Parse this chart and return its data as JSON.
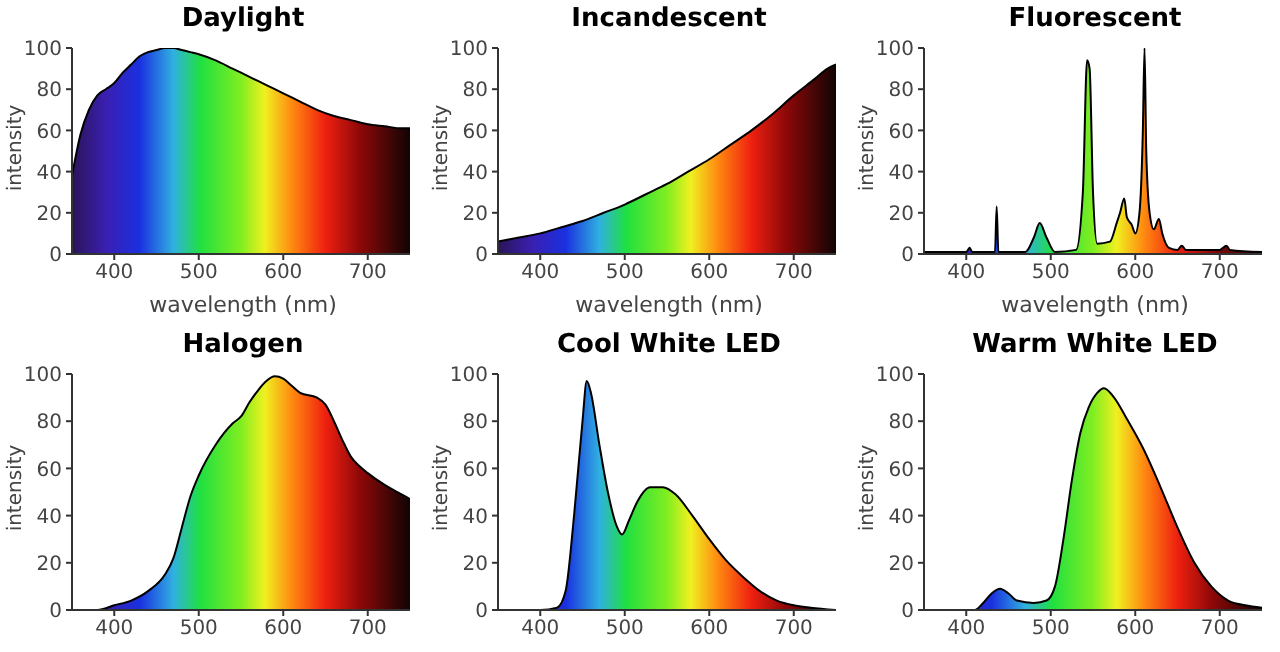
{
  "chart_data": [
    {
      "type": "area",
      "title": "Daylight",
      "xlabel": "wavelength (nm)",
      "ylabel": "intensity",
      "xlim": [
        350,
        750
      ],
      "xticks": [
        400,
        500,
        600,
        700
      ],
      "ylim": [
        0,
        100
      ],
      "yticks": [
        0,
        20,
        40,
        60,
        80,
        100
      ],
      "series": [
        {
          "color": "#000000",
          "x": [
            350,
            360,
            370,
            380,
            390,
            400,
            410,
            420,
            430,
            440,
            450,
            460,
            470,
            480,
            490,
            500,
            520,
            540,
            560,
            580,
            600,
            620,
            640,
            660,
            680,
            700,
            720,
            740,
            750
          ],
          "values": [
            38,
            58,
            70,
            77,
            80,
            83,
            88,
            92,
            96,
            98,
            99,
            100,
            100,
            99,
            98,
            97,
            94,
            90,
            86,
            82,
            78,
            74,
            70,
            67,
            65,
            63,
            62,
            61,
            61
          ]
        }
      ]
    },
    {
      "type": "area",
      "title": "Incandescent",
      "xlabel": "wavelength (nm)",
      "ylabel": "intensity",
      "xlim": [
        350,
        750
      ],
      "xticks": [
        400,
        500,
        600,
        700
      ],
      "ylim": [
        0,
        100
      ],
      "yticks": [
        0,
        20,
        40,
        60,
        80,
        100
      ],
      "series": [
        {
          "color": "#000000",
          "x": [
            350,
            375,
            400,
            425,
            450,
            475,
            500,
            525,
            550,
            575,
            600,
            625,
            650,
            675,
            700,
            725,
            740,
            750
          ],
          "values": [
            6,
            8,
            10,
            13,
            16,
            20,
            24,
            29,
            34,
            40,
            46,
            53,
            60,
            68,
            77,
            85,
            90,
            92
          ]
        }
      ]
    },
    {
      "type": "area",
      "title": "Fluorescent",
      "xlabel": "wavelength (nm)",
      "ylabel": "intensity",
      "xlim": [
        350,
        750
      ],
      "xticks": [
        400,
        500,
        600,
        700
      ],
      "ylim": [
        0,
        100
      ],
      "yticks": [
        0,
        20,
        40,
        60,
        80,
        100
      ],
      "series": [
        {
          "color": "#000000",
          "x": [
            350,
            400,
            404,
            407,
            430,
            434,
            436,
            438,
            470,
            480,
            487,
            495,
            505,
            530,
            538,
            543,
            546,
            550,
            555,
            570,
            578,
            582,
            587,
            590,
            596,
            600,
            605,
            609,
            611,
            613,
            617,
            622,
            628,
            632,
            640,
            650,
            655,
            660,
            700,
            708,
            712,
            750
          ],
          "values": [
            1,
            1,
            3,
            1,
            1,
            1,
            23,
            1,
            1,
            8,
            15,
            8,
            1,
            2,
            30,
            94,
            90,
            30,
            5,
            6,
            15,
            20,
            27,
            18,
            14,
            10,
            20,
            60,
            100,
            50,
            20,
            12,
            17,
            10,
            3,
            2,
            4,
            2,
            2,
            4,
            2,
            1
          ]
        }
      ]
    },
    {
      "type": "area",
      "title": "Halogen",
      "ylabel": "intensity",
      "xlim": [
        350,
        750
      ],
      "xticks": [
        400,
        500,
        600,
        700
      ],
      "ylim": [
        0,
        100
      ],
      "yticks": [
        0,
        20,
        40,
        60,
        80,
        100
      ],
      "series": [
        {
          "color": "#000000",
          "x": [
            350,
            380,
            400,
            420,
            440,
            460,
            470,
            480,
            490,
            500,
            520,
            540,
            550,
            560,
            570,
            580,
            590,
            600,
            610,
            620,
            640,
            650,
            660,
            670,
            680,
            690,
            700,
            720,
            740,
            750
          ],
          "values": [
            0,
            0,
            2,
            4,
            8,
            15,
            22,
            35,
            48,
            57,
            70,
            79,
            82,
            88,
            93,
            97,
            99,
            98,
            95,
            92,
            90,
            87,
            80,
            72,
            65,
            61,
            58,
            53,
            49,
            47
          ]
        }
      ]
    },
    {
      "type": "area",
      "title": "Cool White LED",
      "ylabel": "intensity",
      "xlim": [
        350,
        750
      ],
      "xticks": [
        400,
        500,
        600,
        700
      ],
      "ylim": [
        0,
        100
      ],
      "yticks": [
        0,
        20,
        40,
        60,
        80,
        100
      ],
      "series": [
        {
          "color": "#000000",
          "x": [
            350,
            400,
            420,
            430,
            440,
            450,
            455,
            460,
            470,
            480,
            490,
            497,
            505,
            515,
            530,
            545,
            560,
            580,
            600,
            620,
            640,
            660,
            680,
            700,
            720,
            750
          ],
          "values": [
            0,
            0,
            1,
            8,
            40,
            80,
            97,
            92,
            70,
            50,
            36,
            32,
            38,
            46,
            52,
            52,
            49,
            40,
            30,
            21,
            14,
            8,
            4,
            2,
            1,
            0
          ]
        }
      ]
    },
    {
      "type": "area",
      "title": "Warm White LED",
      "ylabel": "intensity",
      "xlim": [
        350,
        750
      ],
      "xticks": [
        400,
        500,
        600,
        700
      ],
      "ylim": [
        0,
        100
      ],
      "yticks": [
        0,
        20,
        40,
        60,
        80,
        100
      ],
      "series": [
        {
          "color": "#000000",
          "x": [
            350,
            410,
            420,
            430,
            440,
            450,
            460,
            480,
            495,
            505,
            515,
            525,
            535,
            545,
            555,
            563,
            575,
            590,
            610,
            630,
            650,
            670,
            690,
            710,
            730,
            750
          ],
          "values": [
            0,
            0,
            3,
            7,
            9,
            7,
            4,
            3,
            4,
            10,
            30,
            55,
            75,
            86,
            92,
            94,
            90,
            81,
            68,
            52,
            35,
            20,
            10,
            4,
            2,
            1
          ]
        }
      ]
    }
  ]
}
